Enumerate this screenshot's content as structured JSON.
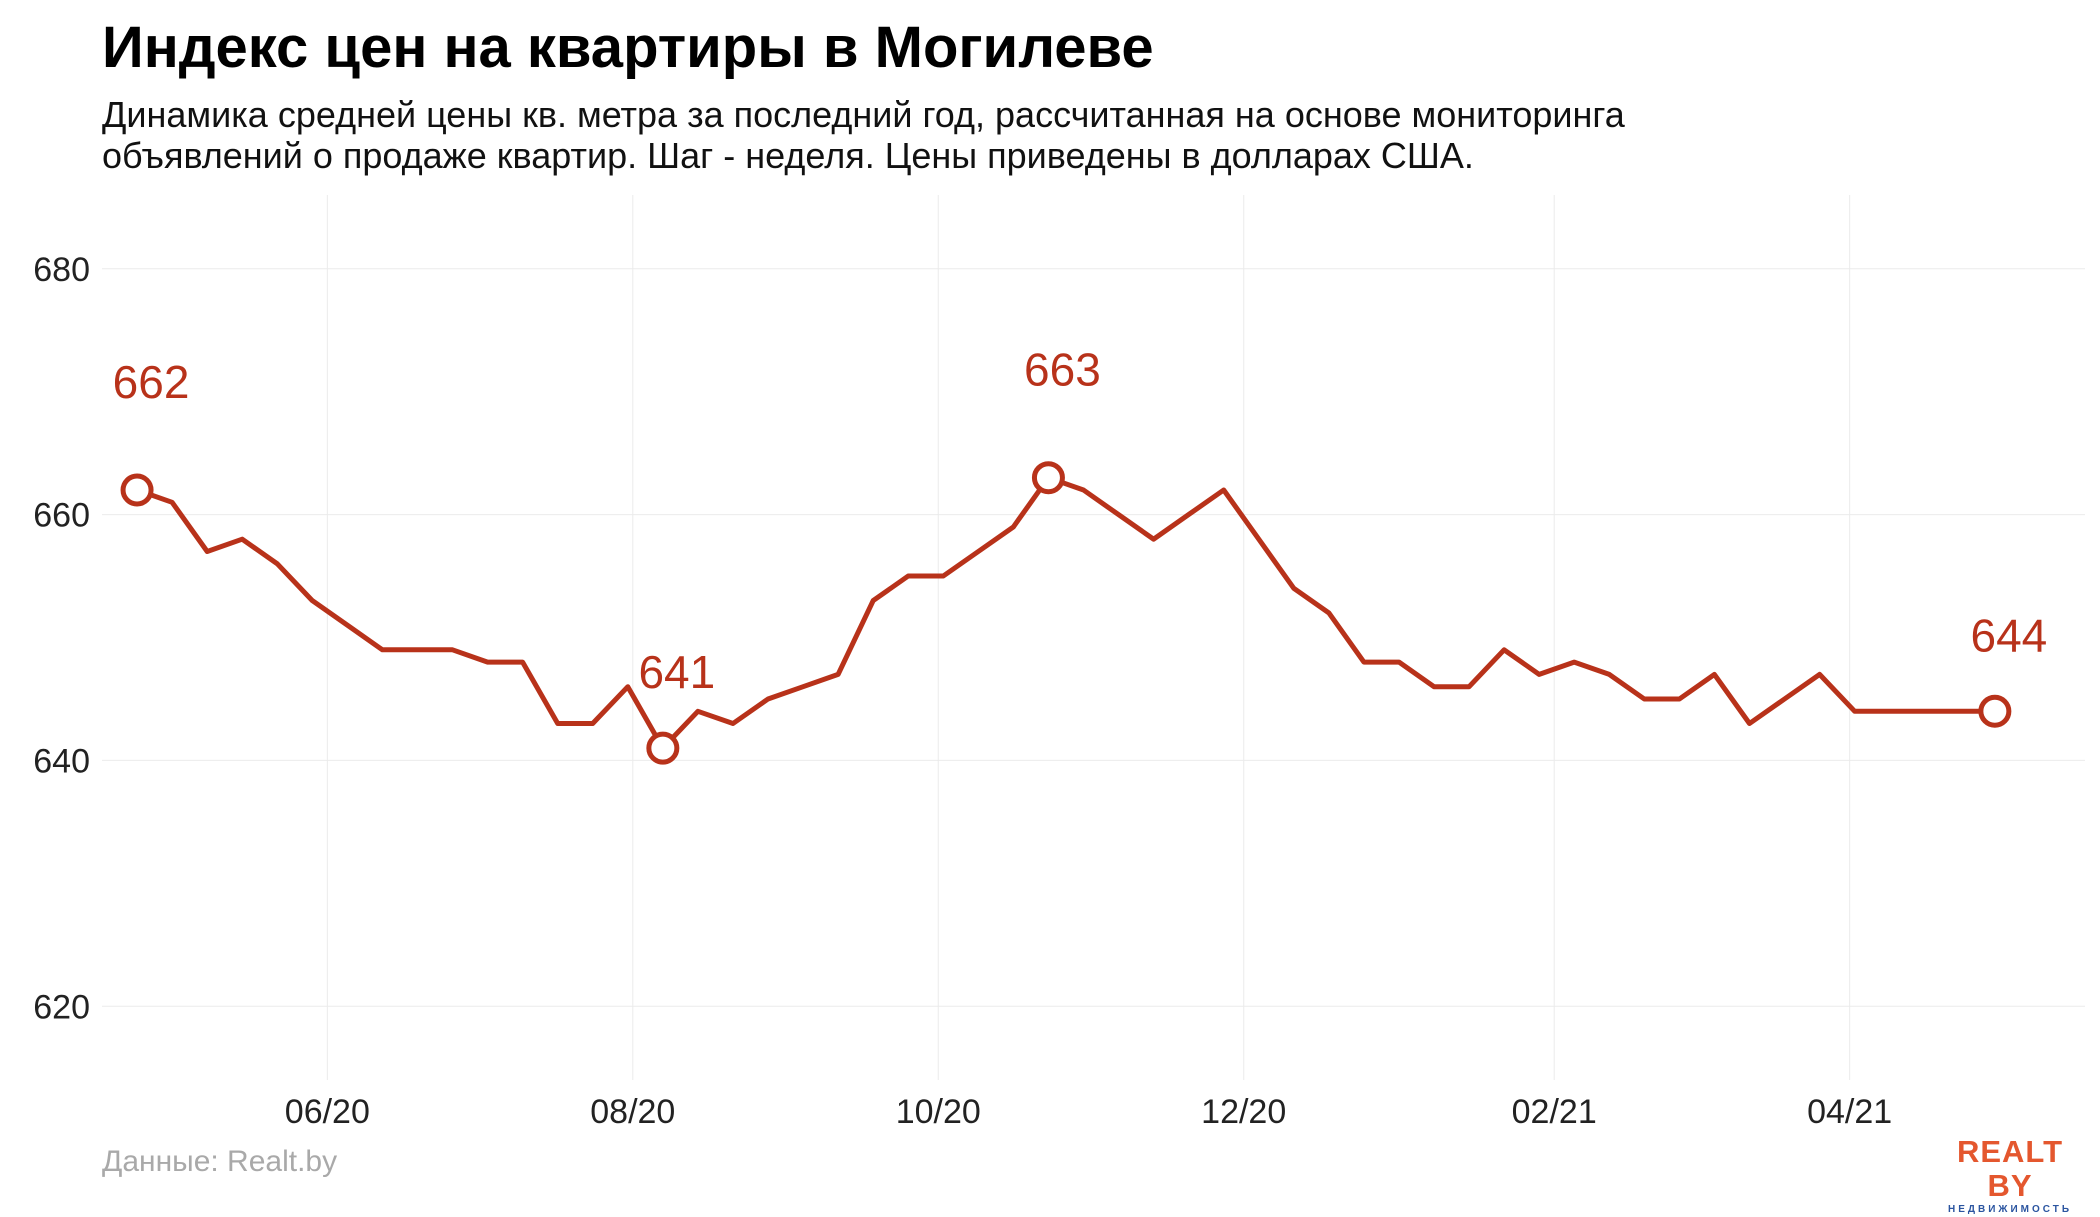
{
  "chart_data": {
    "type": "line",
    "title": "Индекс цен на квартиры в Могилеве",
    "subtitle": "Динамика средней цены кв. метра за последний год, рассчитанная на основе мониторинга объявлений о продаже квартир. Шаг - неделя. Цены приведены в долларах США.",
    "source": "Данные: Realt.by",
    "xlabel": "",
    "ylabel": "",
    "ylim": [
      614,
      686
    ],
    "yticks": [
      620,
      640,
      660,
      680
    ],
    "xlim": [
      "2020-04-17",
      "2021-05-18"
    ],
    "xticks": [
      {
        "date": "2020-06-01",
        "label": "06/20"
      },
      {
        "date": "2020-08-01",
        "label": "08/20"
      },
      {
        "date": "2020-10-01",
        "label": "10/20"
      },
      {
        "date": "2020-12-01",
        "label": "12/20"
      },
      {
        "date": "2021-02-01",
        "label": "02/21"
      },
      {
        "date": "2021-04-01",
        "label": "04/21"
      }
    ],
    "grid": true,
    "line_color": "#b8321a",
    "series": [
      {
        "name": "",
        "x": [
          "2020-04-24",
          "2020-05-01",
          "2020-05-08",
          "2020-05-15",
          "2020-05-22",
          "2020-05-29",
          "2020-06-05",
          "2020-06-12",
          "2020-06-19",
          "2020-06-26",
          "2020-07-03",
          "2020-07-10",
          "2020-07-17",
          "2020-07-24",
          "2020-07-31",
          "2020-08-07",
          "2020-08-14",
          "2020-08-21",
          "2020-08-28",
          "2020-09-04",
          "2020-09-11",
          "2020-09-18",
          "2020-09-25",
          "2020-10-02",
          "2020-10-09",
          "2020-10-16",
          "2020-10-23",
          "2020-10-30",
          "2020-11-06",
          "2020-11-13",
          "2020-11-20",
          "2020-11-27",
          "2020-12-04",
          "2020-12-11",
          "2020-12-18",
          "2020-12-25",
          "2021-01-01",
          "2021-01-08",
          "2021-01-15",
          "2021-01-22",
          "2021-01-29",
          "2021-02-05",
          "2021-02-12",
          "2021-02-19",
          "2021-02-26",
          "2021-03-05",
          "2021-03-12",
          "2021-03-19",
          "2021-03-26",
          "2021-04-02",
          "2021-04-09",
          "2021-04-16",
          "2021-04-23",
          "2021-04-30"
        ],
        "values": [
          662,
          661,
          657,
          658,
          656,
          653,
          651,
          649,
          649,
          649,
          648,
          648,
          643,
          643,
          646,
          641,
          644,
          643,
          645,
          646,
          647,
          653,
          655,
          655,
          657,
          659,
          663,
          662,
          660,
          658,
          660,
          662,
          658,
          654,
          652,
          648,
          648,
          646,
          646,
          649,
          647,
          648,
          647,
          645,
          645,
          647,
          643,
          645,
          647,
          644,
          644,
          644,
          644,
          644
        ]
      }
    ],
    "annotations": [
      {
        "x": "2020-04-24",
        "value": 662,
        "label": "662"
      },
      {
        "x": "2020-08-07",
        "value": 641,
        "label": "641"
      },
      {
        "x": "2020-10-23",
        "value": 663,
        "label": "663"
      },
      {
        "x": "2021-04-30",
        "value": 644,
        "label": "644"
      }
    ]
  },
  "logo": {
    "text": "REALT BY",
    "subtext": "НЕДВИЖИМОСТЬ",
    "color": "#e4572e",
    "subcolor": "#2b55a0"
  }
}
